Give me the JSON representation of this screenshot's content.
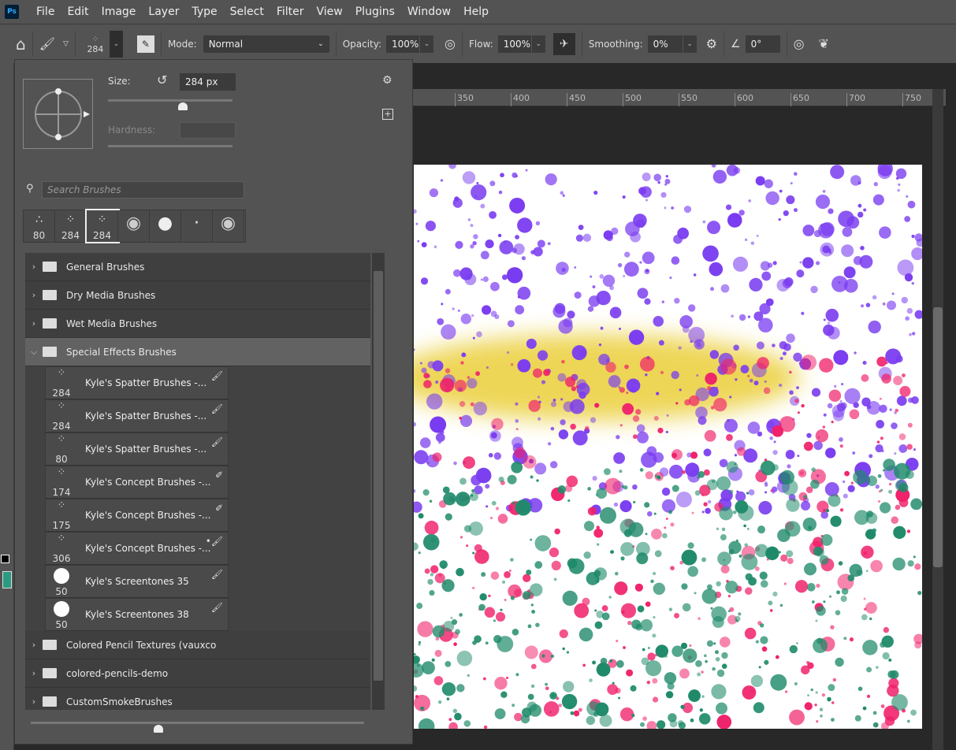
{
  "menu": {
    "logo": "Ps",
    "items": [
      "File",
      "Edit",
      "Image",
      "Layer",
      "Type",
      "Select",
      "Filter",
      "View",
      "Plugins",
      "Window",
      "Help"
    ]
  },
  "toolbar": {
    "brush_size": "284",
    "mode_label": "Mode:",
    "mode_value": "Normal",
    "opacity_label": "Opacity:",
    "opacity_value": "100%",
    "flow_label": "Flow:",
    "flow_value": "100%",
    "smoothing_label": "Smoothing:",
    "smoothing_value": "0%",
    "angle_value": "0°"
  },
  "ruler": [
    "350",
    "400",
    "450",
    "500",
    "550",
    "600",
    "650",
    "700",
    "750"
  ],
  "panel": {
    "size_label": "Size:",
    "size_value": "284 px",
    "size_slider_fraction": 0.6,
    "hardness_label": "Hardness:",
    "search_placeholder": "Search Brushes",
    "recent": [
      "80",
      "284",
      "284",
      "",
      "",
      "",
      ""
    ],
    "folders_top": [
      "General Brushes",
      "Dry Media Brushes",
      "Wet Media Brushes",
      "Special Effects Brushes"
    ],
    "brushes": [
      {
        "size": "284",
        "name": "Kyle's Spatter Brushes -...",
        "icon": "brush-icon"
      },
      {
        "size": "284",
        "name": "Kyle's Spatter Brushes -...",
        "icon": "brush-icon"
      },
      {
        "size": "80",
        "name": "Kyle's Spatter Brushes -...",
        "icon": "brush-icon"
      },
      {
        "size": "174",
        "name": "Kyle's Concept Brushes -...",
        "icon": "mixer-brush-icon"
      },
      {
        "size": "175",
        "name": "Kyle's Concept Brushes -...",
        "icon": "mixer-brush-icon"
      },
      {
        "size": "306",
        "name": "Kyle's Concept Brushes -...",
        "icon": "dual-brush-icon"
      },
      {
        "size": "50",
        "name": "Kyle's Screentones 35",
        "icon": "brush-icon"
      },
      {
        "size": "50",
        "name": "Kyle's Screentones 38",
        "icon": "brush-icon"
      }
    ],
    "folders_bottom": [
      "Colored Pencil Textures (vauxco",
      "colored-pencils-demo",
      "CustomSmokeBrushes"
    ]
  },
  "colors": {
    "foreground": "#000000",
    "background": "#2a9a80",
    "purple": "#7a3cf0",
    "pink": "#f0206a",
    "teal": "#1f8a6a",
    "yellow": "#e8c81e"
  }
}
